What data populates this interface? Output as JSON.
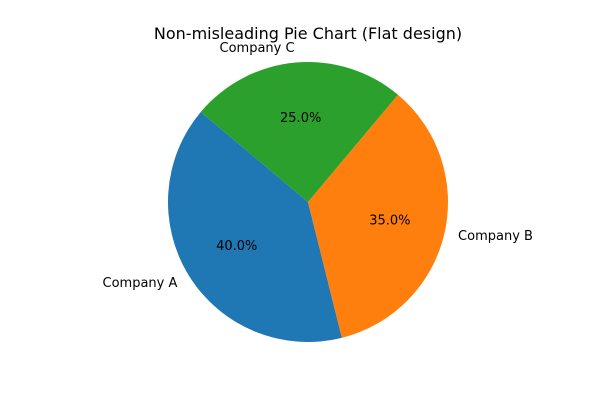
{
  "chart_data": {
    "type": "pie",
    "title": "Non-misleading Pie Chart (Flat design)",
    "labels": [
      "Company A",
      "Company B",
      "Company C"
    ],
    "values": [
      40,
      35,
      25
    ],
    "percent_labels": [
      "40.0%",
      "35.0%",
      "25.0%"
    ],
    "colors": [
      "#1f77b4",
      "#ff7f0e",
      "#2ca02c"
    ],
    "start_angle_deg": 140,
    "direction": "counterclockwise"
  }
}
